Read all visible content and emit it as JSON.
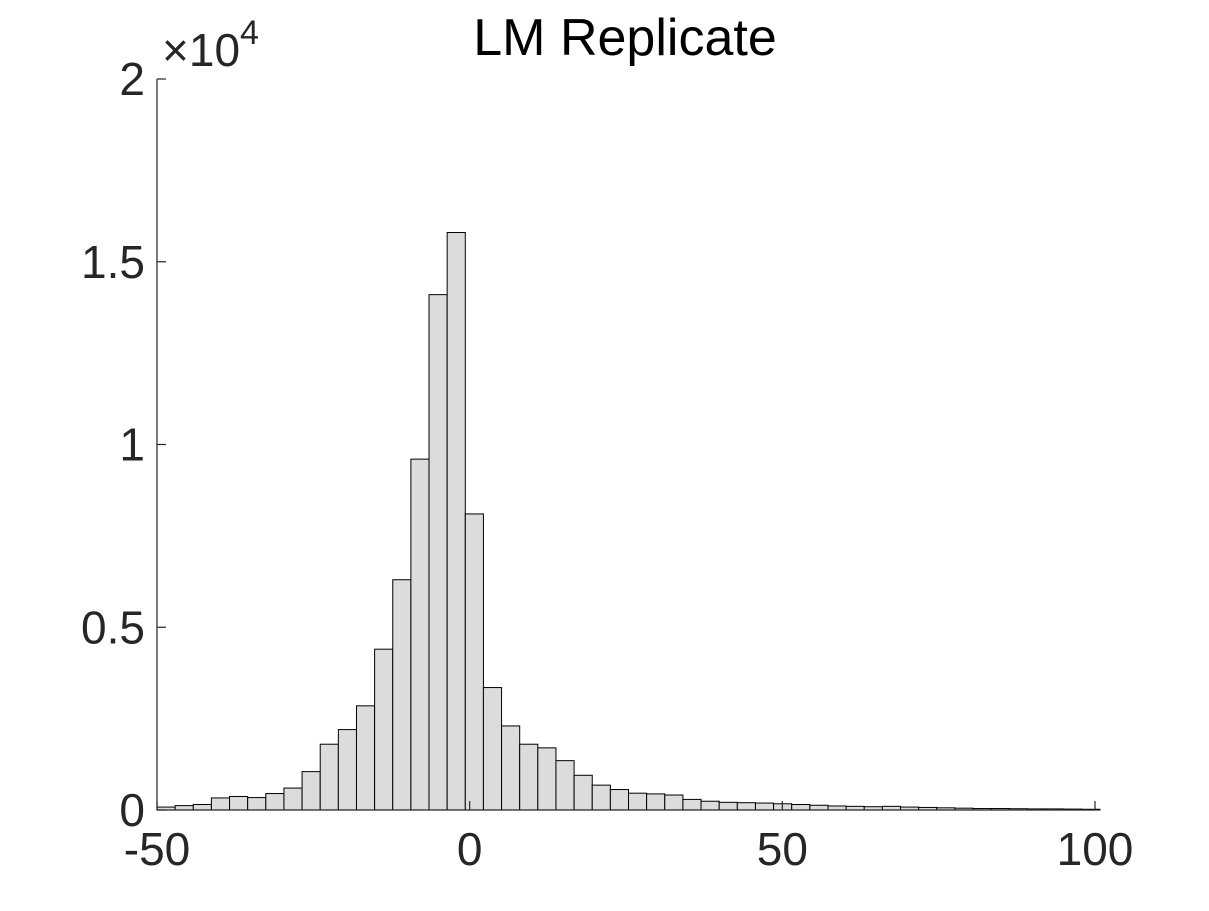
{
  "chart_data": {
    "type": "bar",
    "title": "LM Replicate",
    "xlabel": "",
    "ylabel": "",
    "xlim": [
      -50,
      100
    ],
    "ylim": [
      0,
      20000
    ],
    "grid": false,
    "bar_color": "#dcdcdc",
    "edge_color": "#000000",
    "axis_color": "#262626",
    "y_exponent_label": {
      "prefix": "×10",
      "power": "4"
    },
    "x_ticks": [
      {
        "value": -50,
        "label": "-50"
      },
      {
        "value": 0,
        "label": "0"
      },
      {
        "value": 50,
        "label": "50"
      },
      {
        "value": 100,
        "label": "100"
      }
    ],
    "y_ticks": [
      {
        "value": 0,
        "label": "0"
      },
      {
        "value": 5000,
        "label": "0.5"
      },
      {
        "value": 10000,
        "label": "1"
      },
      {
        "value": 15000,
        "label": "1.5"
      },
      {
        "value": 20000,
        "label": "2"
      }
    ],
    "bin_edges_start": -50,
    "bin_width": 2.9,
    "values": [
      80,
      120,
      150,
      330,
      370,
      340,
      450,
      600,
      1050,
      1800,
      2200,
      2850,
      4400,
      6300,
      9600,
      14100,
      15800,
      8100,
      3350,
      2300,
      1800,
      1700,
      1350,
      950,
      680,
      560,
      460,
      440,
      410,
      290,
      240,
      210,
      200,
      190,
      170,
      150,
      130,
      110,
      100,
      90,
      100,
      80,
      70,
      60,
      50,
      40,
      40,
      35,
      30,
      30,
      25,
      20
    ]
  }
}
